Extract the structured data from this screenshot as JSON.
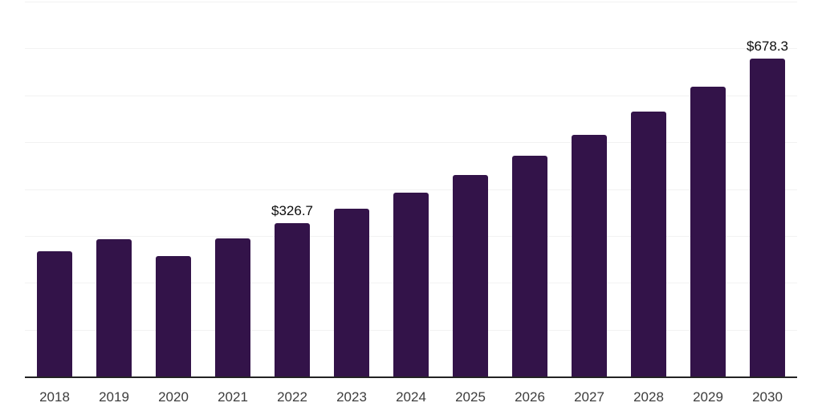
{
  "chart_data": {
    "type": "bar",
    "title": "",
    "xlabel": "",
    "ylabel": "",
    "categories": [
      "2018",
      "2019",
      "2020",
      "2021",
      "2022",
      "2023",
      "2024",
      "2025",
      "2026",
      "2027",
      "2028",
      "2029",
      "2030"
    ],
    "values": [
      267,
      293,
      257,
      294,
      326.7,
      358,
      392,
      430,
      471,
      516,
      565,
      619,
      678.3
    ],
    "data_labels": {
      "2022": "$326.7",
      "2030": "$678.3"
    },
    "ylim": [
      0,
      800
    ],
    "gridline_values": [
      100,
      200,
      300,
      400,
      500,
      600,
      700,
      800
    ],
    "grid": true,
    "legend_position": "none",
    "y_axis_labels_visible": false,
    "colors": {
      "bar": "#331349",
      "axis_line": "#232323",
      "gridline": "#f2f2f2",
      "tick_label": "#3d3d3d",
      "data_label": "#0d0d0d",
      "background": "#ffffff"
    }
  }
}
